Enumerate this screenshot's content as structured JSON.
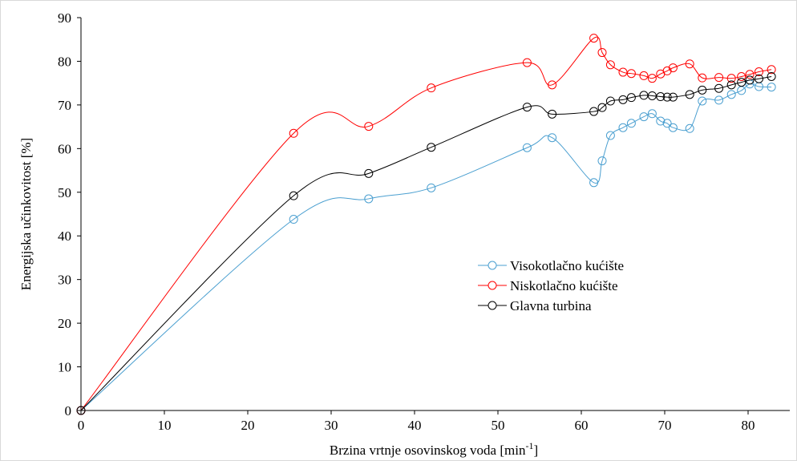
{
  "chart_data": {
    "type": "line",
    "title": "",
    "xlabel": "Brzina vrtnje osovinskog voda [min",
    "xlabel_sup": "-1",
    "xlabel_end": "]",
    "ylabel": "Energijska učinkovitost [%]",
    "xlim": [
      0,
      85
    ],
    "ylim": [
      0,
      90
    ],
    "xticks": [
      0,
      10,
      20,
      30,
      40,
      50,
      60,
      70,
      80
    ],
    "yticks": [
      0,
      10,
      20,
      30,
      40,
      50,
      60,
      70,
      80,
      90
    ],
    "grid": false,
    "legend_position": "center-right",
    "series": [
      {
        "name": "Visokotlačno kućište",
        "color": "#4a9fd0",
        "x": [
          0,
          25.5,
          34.5,
          42,
          53.5,
          56.5,
          61.5,
          62.5,
          63.5,
          65,
          66,
          67.5,
          68.5,
          69.5,
          70.3,
          71,
          73,
          74.5,
          76.5,
          78,
          79.2,
          80.2,
          81.3,
          82.8
        ],
        "y": [
          0,
          43.8,
          48.5,
          51,
          60.2,
          62.5,
          52.2,
          57.2,
          63,
          64.8,
          65.8,
          67.3,
          68,
          66.3,
          65.8,
          64.8,
          64.6,
          70.9,
          71.1,
          72.4,
          73.3,
          74.8,
          74.2,
          74.1
        ]
      },
      {
        "name": "Niskotlačno kućište",
        "color": "#ff0000",
        "x": [
          0,
          25.5,
          34.5,
          42,
          53.5,
          56.5,
          61.5,
          62.5,
          63.5,
          65,
          66,
          67.5,
          68.5,
          69.5,
          70.3,
          71,
          73,
          74.5,
          76.5,
          78,
          79.2,
          80.2,
          81.3,
          82.8
        ],
        "y": [
          0,
          63.5,
          65.1,
          73.9,
          79.7,
          74.6,
          85.3,
          82,
          79.2,
          77.5,
          77.2,
          76.7,
          76.1,
          77.1,
          77.8,
          78.5,
          79.4,
          76.2,
          76.3,
          76.1,
          76.5,
          77,
          77.6,
          78.1
        ]
      },
      {
        "name": "Glavna turbina",
        "color": "#000000",
        "x": [
          0,
          25.5,
          34.5,
          42,
          53.5,
          56.5,
          61.5,
          62.5,
          63.5,
          65,
          66,
          67.5,
          68.5,
          69.5,
          70.3,
          71,
          73,
          74.5,
          76.5,
          78,
          79.2,
          80.2,
          81.3,
          82.8
        ],
        "y": [
          0,
          49.2,
          54.3,
          60.3,
          69.5,
          67.9,
          68.5,
          69.4,
          70.9,
          71.2,
          71.7,
          72.2,
          72.1,
          71.9,
          71.8,
          71.8,
          72.4,
          73.4,
          73.8,
          74.6,
          75.2,
          75.7,
          76,
          76.5
        ]
      }
    ]
  }
}
